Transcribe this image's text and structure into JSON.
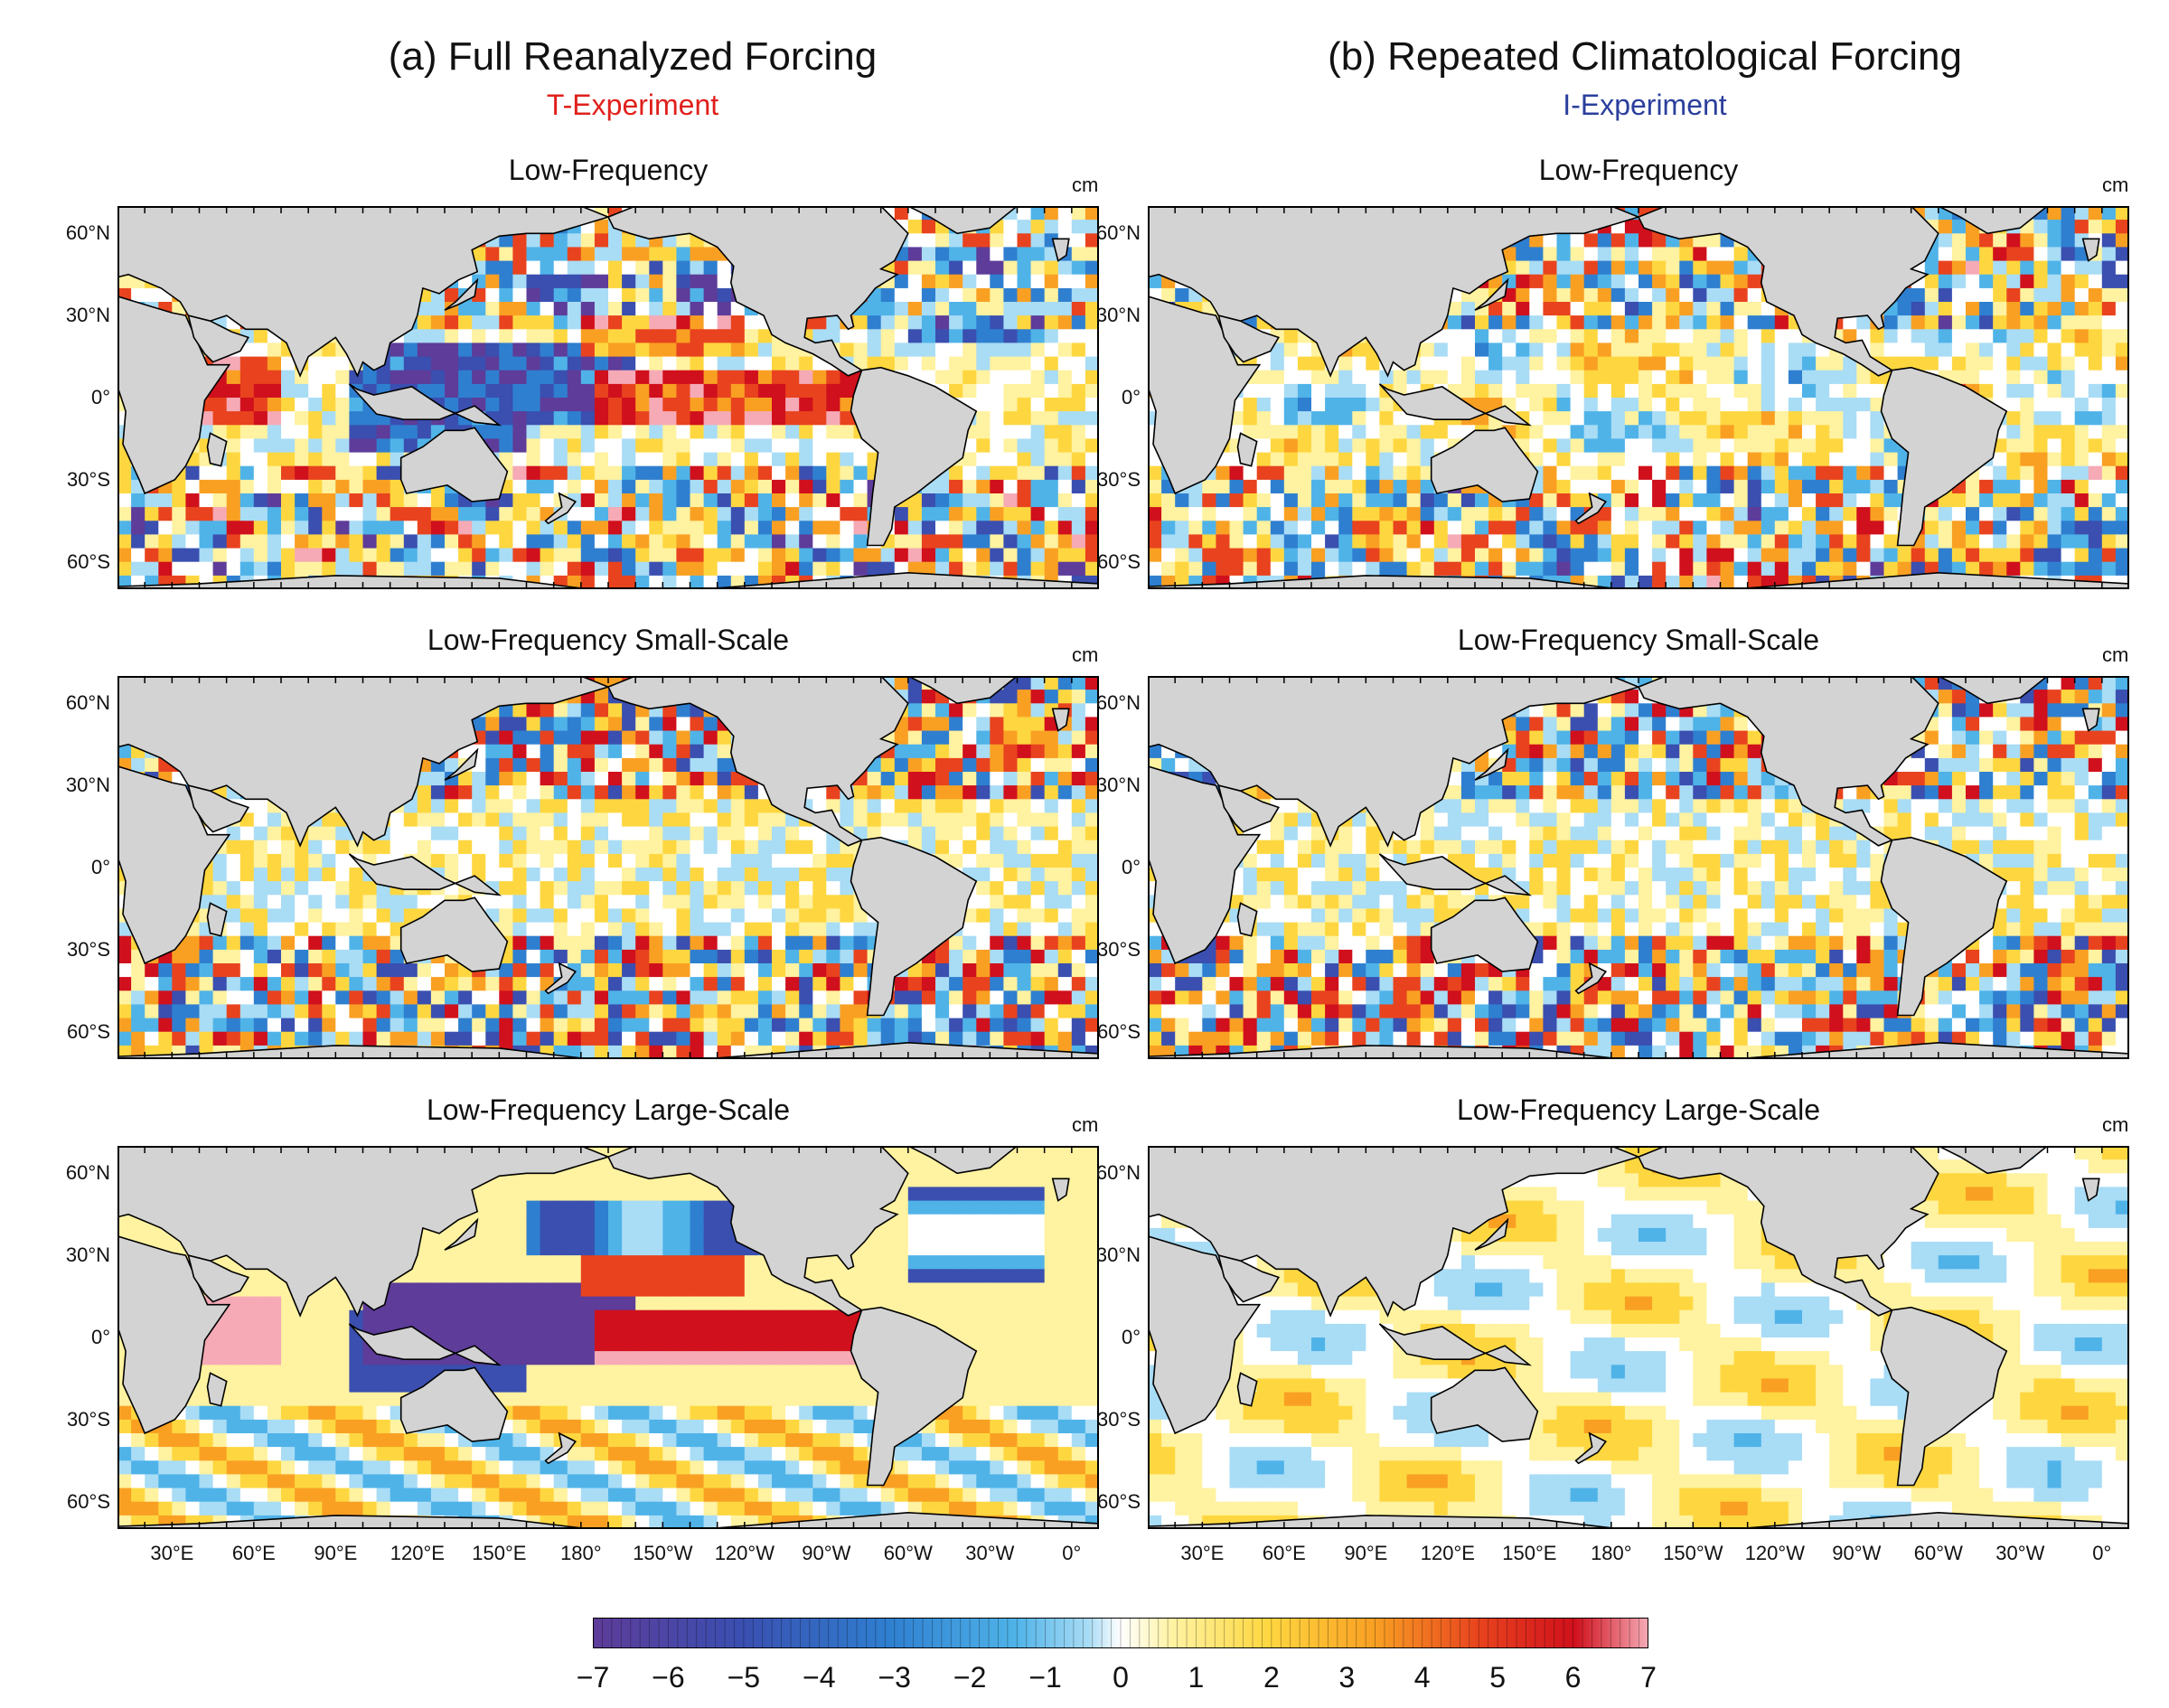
{
  "columns": [
    {
      "title": "(a) Full Reanalyzed Forcing",
      "subtitle": "T-Experiment",
      "subtitle_color": "#e0201b"
    },
    {
      "title": "(b) Repeated Climatological Forcing",
      "subtitle": "I-Experiment",
      "subtitle_color": "#2a3f9c"
    }
  ],
  "panels": [
    {
      "title": "Low-Frequency",
      "unit": "cm"
    },
    {
      "title": "Low-Frequency Small-Scale",
      "unit": "cm"
    },
    {
      "title": "Low-Frequency Large-Scale",
      "unit": "cm"
    }
  ],
  "lat_labels": [
    "60°N",
    "30°N",
    "0°",
    "30°S",
    "60°S"
  ],
  "lon_labels": [
    "30°E",
    "60°E",
    "90°E",
    "120°E",
    "150°E",
    "180°",
    "150°W",
    "120°W",
    "90°W",
    "60°W",
    "30°W",
    "0°"
  ],
  "colorbar": {
    "ticks": [
      "−7",
      "−6",
      "−5",
      "−4",
      "−3",
      "−2",
      "−1",
      "0",
      "1",
      "2",
      "3",
      "4",
      "5",
      "6",
      "7"
    ],
    "range": [
      -7,
      7
    ],
    "colors": [
      "#5e3c99",
      "#3a4fb0",
      "#2f7fd0",
      "#4fb3e8",
      "#a9dcf5",
      "#ffffff",
      "#fff2a0",
      "#fed740",
      "#f9a023",
      "#e8431e",
      "#d0101c",
      "#f5aab6"
    ]
  },
  "map_colors": {
    "land": "#d3d3d3",
    "ocean": "#ffffff",
    "coast": "#000000"
  }
}
